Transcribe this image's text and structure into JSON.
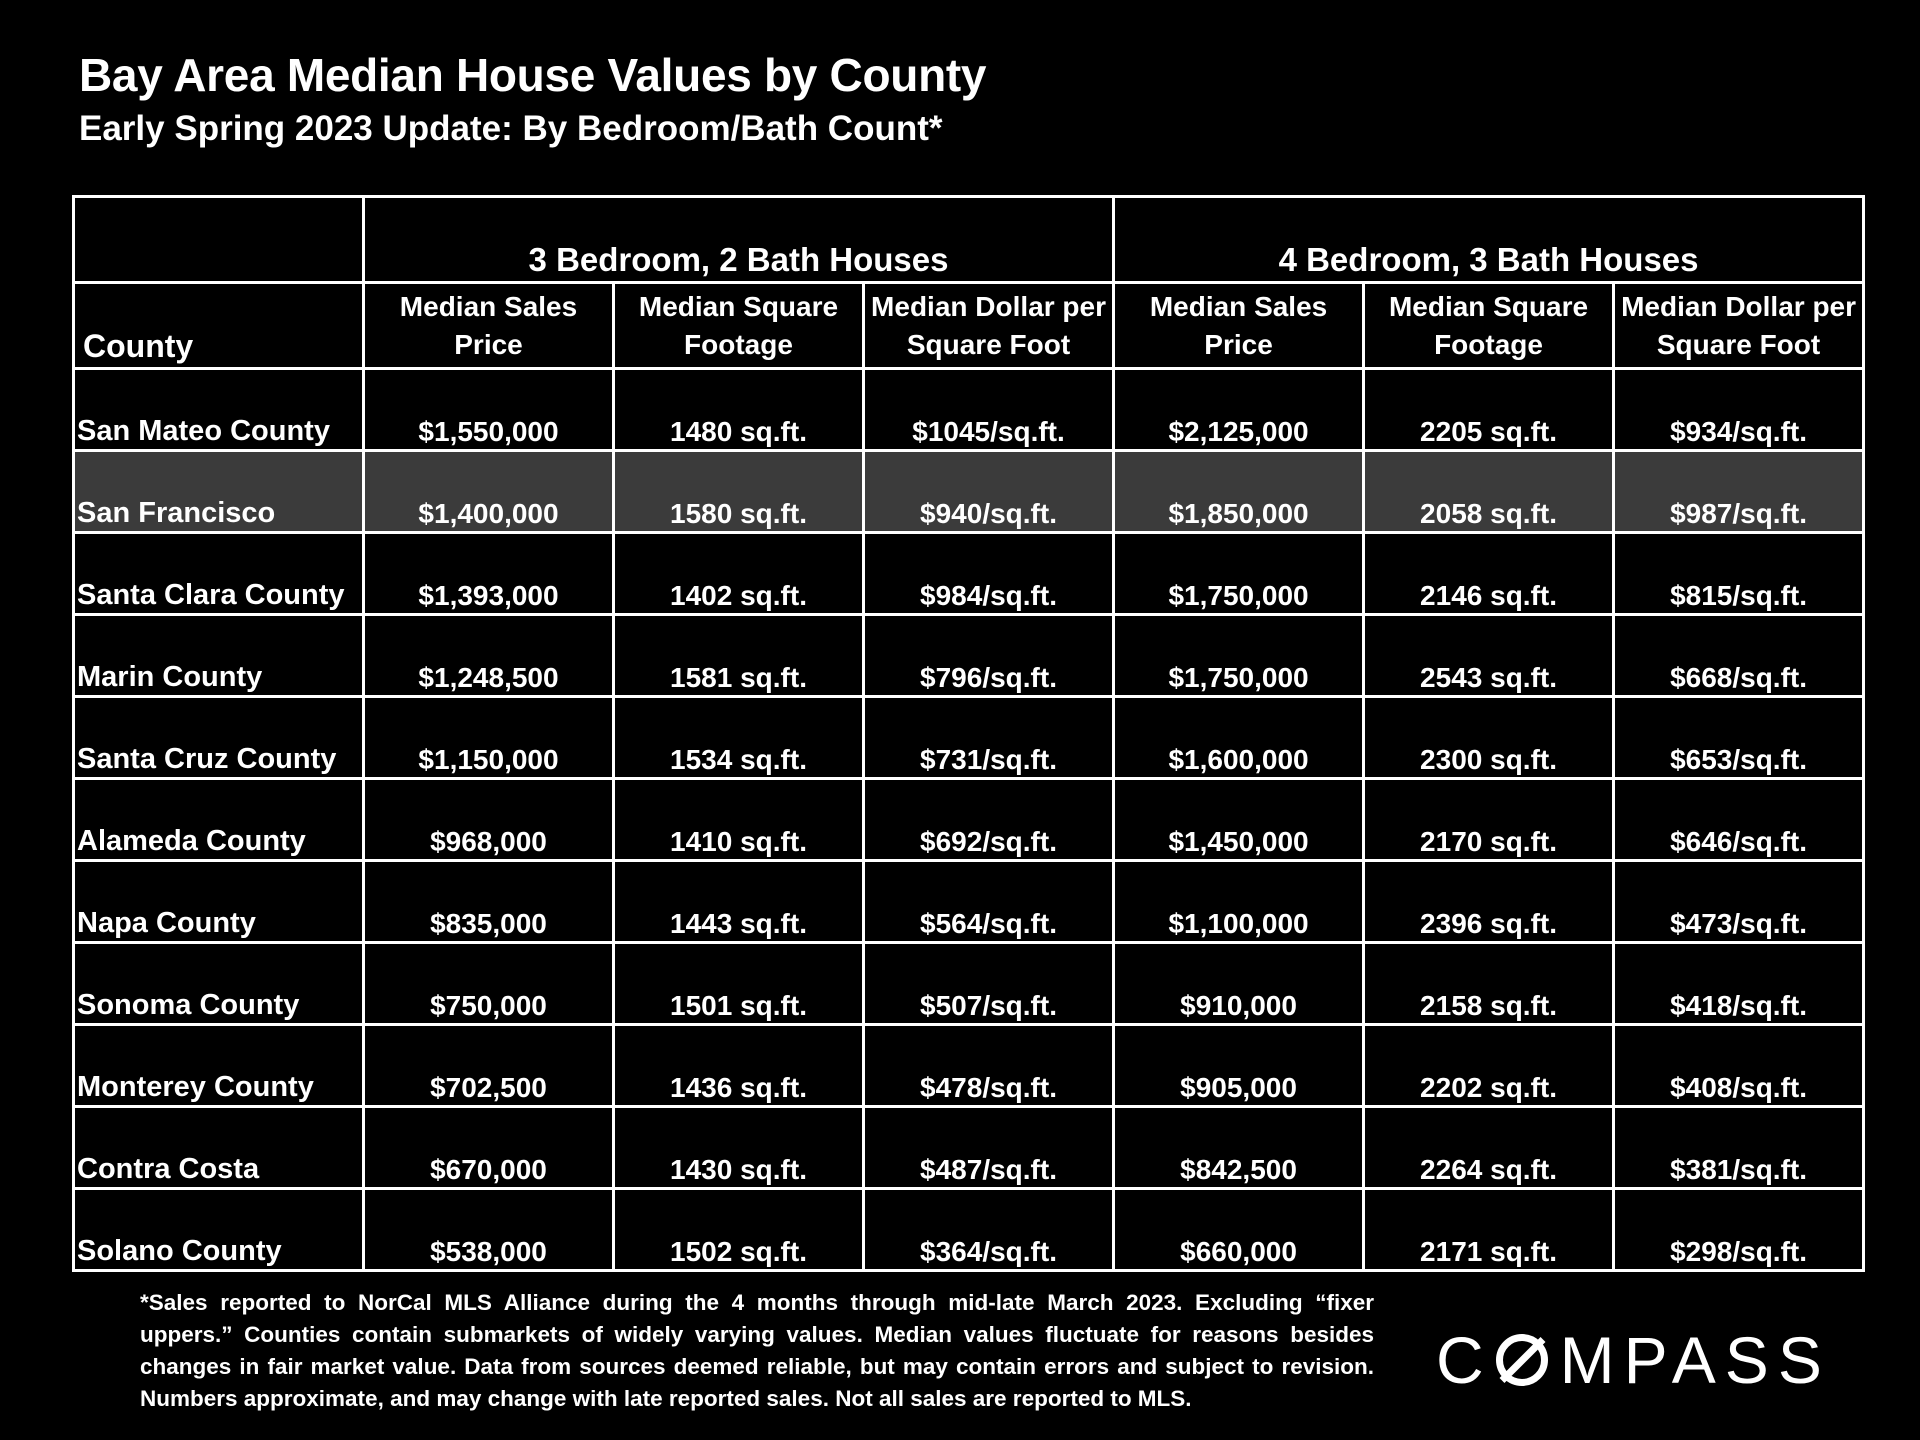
{
  "header": {
    "title": "Bay Area Median House Values by County",
    "subtitle": "Early Spring 2023 Update:  By Bedroom/Bath Count*"
  },
  "table": {
    "county_header": "County",
    "groups": [
      "3 Bedroom, 2 Bath Houses",
      "4 Bedroom, 3 Bath Houses"
    ],
    "columns": [
      "Median Sales Price",
      "Median Square Footage",
      "Median Dollar per Square Foot",
      "Median Sales Price",
      "Median Square Footage",
      "Median Dollar per Square Foot"
    ],
    "highlight_row": "San Francisco",
    "highlight_color": "#3b3b3b"
  },
  "chart_data": {
    "type": "table",
    "title": "Bay Area Median House Values by County",
    "subtitle": "Early Spring 2023 Update:  By Bedroom/Bath Count*",
    "rows": [
      {
        "county": "San Mateo County",
        "cells": [
          "$1,550,000",
          "1480 sq.ft.",
          "$1045/sq.ft.",
          "$2,125,000",
          "2205 sq.ft.",
          "$934/sq.ft."
        ]
      },
      {
        "county": "San Francisco",
        "cells": [
          "$1,400,000",
          "1580 sq.ft.",
          "$940/sq.ft.",
          "$1,850,000",
          "2058 sq.ft.",
          "$987/sq.ft."
        ]
      },
      {
        "county": "Santa Clara County",
        "cells": [
          "$1,393,000",
          "1402 sq.ft.",
          "$984/sq.ft.",
          "$1,750,000",
          "2146 sq.ft.",
          "$815/sq.ft."
        ]
      },
      {
        "county": "Marin County",
        "cells": [
          "$1,248,500",
          "1581 sq.ft.",
          "$796/sq.ft.",
          "$1,750,000",
          "2543 sq.ft.",
          "$668/sq.ft."
        ]
      },
      {
        "county": "Santa Cruz County",
        "cells": [
          "$1,150,000",
          "1534 sq.ft.",
          "$731/sq.ft.",
          "$1,600,000",
          "2300 sq.ft.",
          "$653/sq.ft."
        ]
      },
      {
        "county": "Alameda County",
        "cells": [
          "$968,000",
          "1410 sq.ft.",
          "$692/sq.ft.",
          "$1,450,000",
          "2170 sq.ft.",
          "$646/sq.ft."
        ]
      },
      {
        "county": "Napa County",
        "cells": [
          "$835,000",
          "1443 sq.ft.",
          "$564/sq.ft.",
          "$1,100,000",
          "2396 sq.ft.",
          "$473/sq.ft."
        ]
      },
      {
        "county": "Sonoma County",
        "cells": [
          "$750,000",
          "1501 sq.ft.",
          "$507/sq.ft.",
          "$910,000",
          "2158 sq.ft.",
          "$418/sq.ft."
        ]
      },
      {
        "county": "Monterey County",
        "cells": [
          "$702,500",
          "1436 sq.ft.",
          "$478/sq.ft.",
          "$905,000",
          "2202 sq.ft.",
          "$408/sq.ft."
        ]
      },
      {
        "county": "Contra Costa",
        "cells": [
          "$670,000",
          "1430 sq.ft.",
          "$487/sq.ft.",
          "$842,500",
          "2264 sq.ft.",
          "$381/sq.ft."
        ]
      },
      {
        "county": "Solano County",
        "cells": [
          "$538,000",
          "1502 sq.ft.",
          "$364/sq.ft.",
          "$660,000",
          "2171 sq.ft.",
          "$298/sq.ft."
        ]
      }
    ]
  },
  "footnote": "*Sales reported to NorCal MLS Alliance during the 4 months through mid-late March 2023. Excluding “fixer uppers.” Counties contain submarkets of widely varying values. Median values fluctuate for reasons besides changes in fair market value. Data from sources deemed reliable, but may contain errors and subject to revision.  Numbers approximate, and may change with late reported sales. Not all sales are reported to MLS.",
  "logo": {
    "text_before": "C",
    "text_after": "MPASS",
    "icon": "compass-o-slash-icon"
  }
}
